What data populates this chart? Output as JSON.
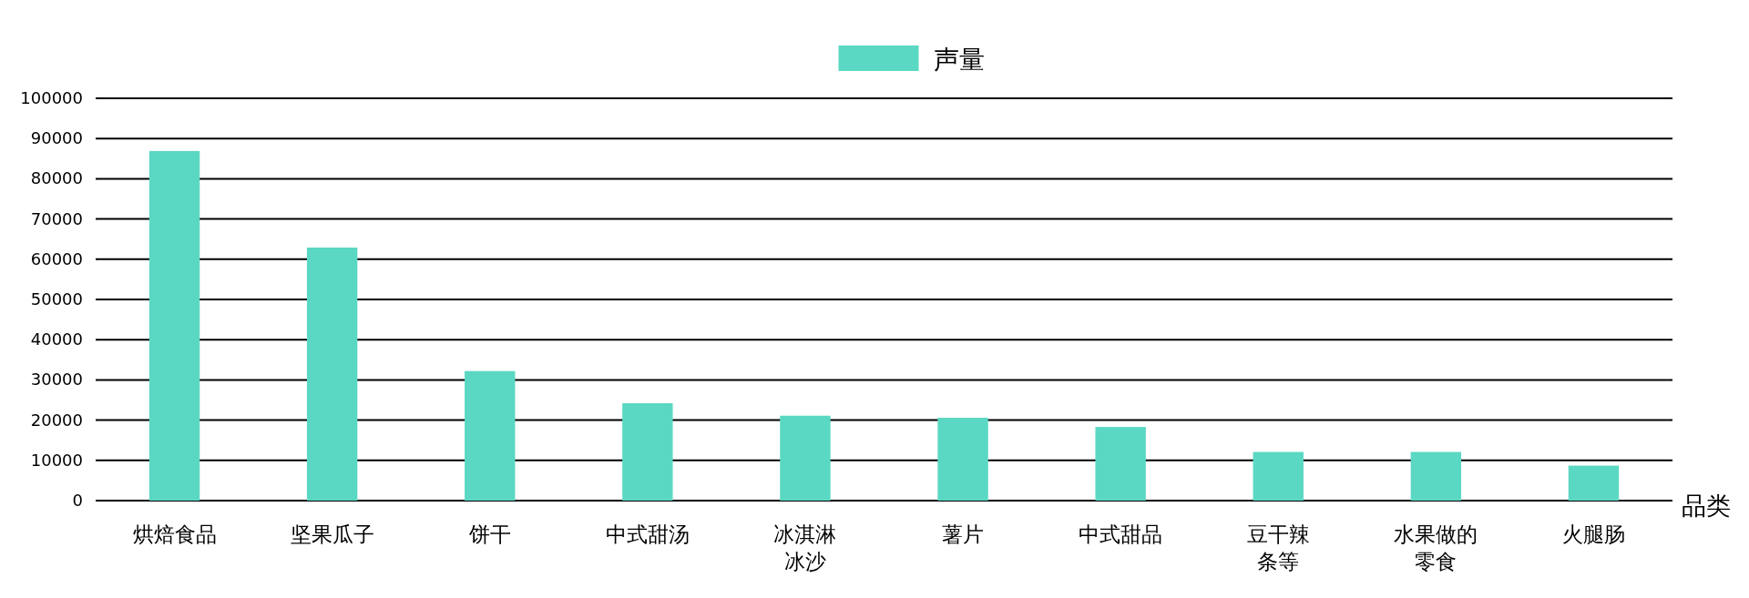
{
  "chart_data": {
    "type": "bar",
    "xlabel": "品类",
    "categories": [
      "烘焙食品",
      "坚果瓜子",
      "饼干",
      "中式甜汤",
      "冰淇淋冰沙",
      "薯片",
      "中式甜品",
      "豆干辣条等",
      "水果做的零食",
      "火腿肠"
    ],
    "series": [
      {
        "name": "声量",
        "color": "#5ad8c3",
        "values": [
          86900,
          62900,
          32200,
          24200,
          21100,
          20600,
          18300,
          12100,
          12100,
          8700
        ]
      }
    ],
    "ylim": [
      0,
      100000
    ],
    "yticks": [
      0,
      10000,
      20000,
      30000,
      40000,
      50000,
      60000,
      70000,
      80000,
      90000,
      100000
    ],
    "grid": "y",
    "legend": "top"
  }
}
